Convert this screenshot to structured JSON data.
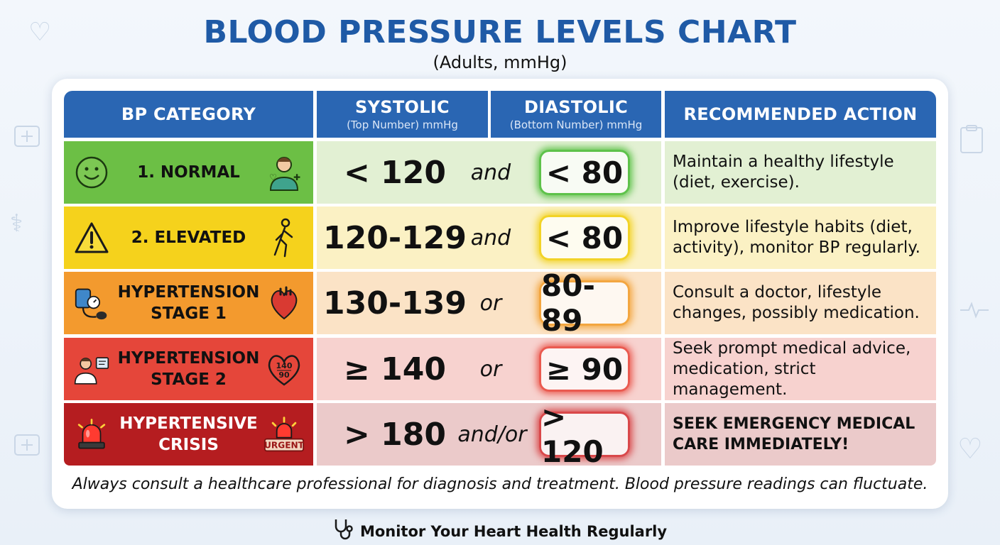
{
  "title": "BLOOD PRESSURE LEVELS CHART",
  "subtitle": "(Adults, mmHg)",
  "headers": {
    "category": "BP CATEGORY",
    "systolic": "SYSTOLIC",
    "systolic_sub": "(Top Number) mmHg",
    "diastolic": "DIASTOLIC",
    "diastolic_sub": "(Bottom Number) mmHg",
    "action": "RECOMMENDED ACTION"
  },
  "rows": [
    {
      "category_line1": "1. NORMAL",
      "category_line2": "",
      "systolic": "< 120",
      "conjunction": "and",
      "diastolic": "< 80",
      "action_line1": "Maintain a healthy lifestyle",
      "action_line2": "(diet, exercise).",
      "left_icon": "smiley-icon",
      "right_icon": "doctor-icon",
      "cat_color": "#6cbf45",
      "row_color": "#e2f0d3",
      "badge_glow": "#5ec24a"
    },
    {
      "category_line1": "2. ELEVATED",
      "category_line2": "",
      "systolic": "120-129",
      "conjunction": "and",
      "diastolic": "< 80",
      "action_line1": "Improve lifestyle habits (diet,",
      "action_line2": "activity), monitor BP regularly.",
      "left_icon": "warning-icon",
      "right_icon": "walking-person-icon",
      "cat_color": "#f5d21c",
      "row_color": "#fbf1c4",
      "badge_glow": "#f2d327"
    },
    {
      "category_line1": "HYPERTENSION",
      "category_line2": "STAGE 1",
      "systolic": "130-139",
      "conjunction": "or",
      "diastolic": "80-89",
      "action_line1": "Consult a doctor, lifestyle",
      "action_line2": "changes, possibly medication.",
      "left_icon": "blood-pressure-cuff-icon",
      "right_icon": "heart-organ-icon",
      "cat_color": "#f39a2e",
      "row_color": "#fbe3c6",
      "badge_glow": "#f3a640"
    },
    {
      "category_line1": "HYPERTENSION",
      "category_line2": "STAGE 2",
      "systolic": "≥ 140",
      "conjunction": "or",
      "diastolic": "≥ 90",
      "action_line1": "Seek prompt medical advice,",
      "action_line2": "medication, strict management.",
      "left_icon": "doctor-chart-icon",
      "right_icon": "heart-monitor-icon",
      "heart_top": "140",
      "heart_bottom": "90",
      "cat_color": "#e5463a",
      "row_color": "#f7d2cf",
      "badge_glow": "#ea5a50"
    },
    {
      "category_line1": "HYPERTENSIVE",
      "category_line2": "CRISIS",
      "systolic": "> 180",
      "conjunction": "and/or",
      "diastolic": "> 120",
      "action_line1": "SEEK EMERGENCY MEDICAL",
      "action_line2": "CARE IMMEDIATELY!",
      "left_icon": "siren-icon",
      "right_icon": "urgent-siren-icon",
      "urgent_label": "URGENT",
      "cat_color": "#b51d20",
      "row_color": "#ebcaca",
      "badge_glow": "#d9484a"
    }
  ],
  "footnote": "Always consult a healthcare professional for diagnosis and treatment. Blood pressure readings can fluctuate.",
  "bottom_note": "Monitor Your Heart Health Regularly",
  "colors": {
    "title": "#1f5aa6",
    "header": "#2a66b3"
  }
}
